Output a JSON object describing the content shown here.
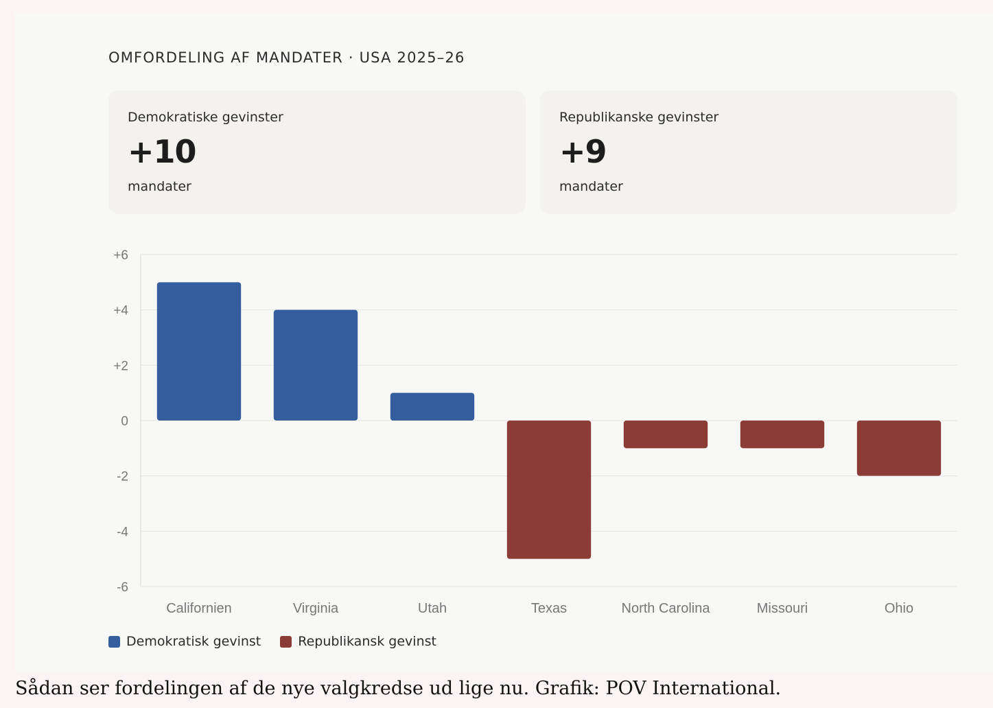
{
  "card_title": "OMFORDELING AF MANDATER · USA 2025–26",
  "stats": {
    "dem": {
      "label": "Demokratiske gevinster",
      "value": "+10",
      "unit": "mandater"
    },
    "rep": {
      "label": "Republikanske gevinster",
      "value": "+9",
      "unit": "mandater"
    }
  },
  "colors": {
    "dem": "#355e9e",
    "rep": "#8b3c37"
  },
  "chart_data": {
    "type": "bar",
    "categories": [
      "Californien",
      "Virginia",
      "Utah",
      "Texas",
      "North Carolina",
      "Missouri",
      "Ohio"
    ],
    "values": [
      5,
      4,
      1,
      -5,
      -1,
      -1,
      -2
    ],
    "party": [
      "dem",
      "dem",
      "dem",
      "rep",
      "rep",
      "rep",
      "rep"
    ],
    "ylim": [
      -6,
      6
    ],
    "yticks": [
      6,
      4,
      2,
      0,
      -2,
      -4,
      -6
    ],
    "ytick_labels": [
      "+6",
      "+4",
      "+2",
      "0",
      "-2",
      "-4",
      "-6"
    ],
    "grid": true,
    "legend": [
      {
        "key": "dem",
        "label": "Demokratisk gevinst"
      },
      {
        "key": "rep",
        "label": "Republikansk gevinst"
      }
    ]
  },
  "caption": "Sådan ser fordelingen af de nye valgkredse ud lige nu. Grafik: POV International."
}
